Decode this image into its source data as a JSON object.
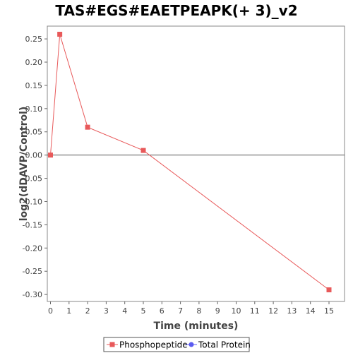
{
  "chart_data": {
    "type": "line",
    "title": "TAS#EGS#EAETPEAPK(+ 3)_v2",
    "xlabel": "Time (minutes)",
    "ylabel": "log2(dDAVP/Control)",
    "x_ticks": [
      "0",
      "1",
      "2",
      "3",
      "4",
      "5",
      "6",
      "7",
      "8",
      "9",
      "10",
      "11",
      "12",
      "13",
      "14",
      "15"
    ],
    "y_ticks": [
      0.25,
      0.2,
      0.15,
      0.1,
      0.05,
      0.0,
      -0.05,
      -0.1,
      -0.15,
      -0.2,
      -0.25,
      -0.3
    ],
    "y_tick_labels": [
      "0.25",
      "0.20",
      "0.15",
      "0.10",
      "0.05",
      "0.00",
      "-0.05",
      "-0.10",
      "-0.15",
      "-0.20",
      "-0.25",
      "-0.30"
    ],
    "ylim": [
      -0.315,
      0.2775
    ],
    "series": [
      {
        "name": "Phosphopeptide",
        "color": "#e8595a",
        "marker": "square",
        "points": [
          {
            "x": 0,
            "y": 0.0
          },
          {
            "x": 0.5,
            "y": 0.26
          },
          {
            "x": 2,
            "y": 0.06
          },
          {
            "x": 5,
            "y": 0.01
          },
          {
            "x": 15,
            "y": -0.29
          }
        ]
      },
      {
        "name": "Total Protein",
        "color": "#5b5bf0",
        "marker": "circle",
        "points": []
      }
    ],
    "zero_line": true,
    "grid": false,
    "legend_position": "bottom"
  }
}
